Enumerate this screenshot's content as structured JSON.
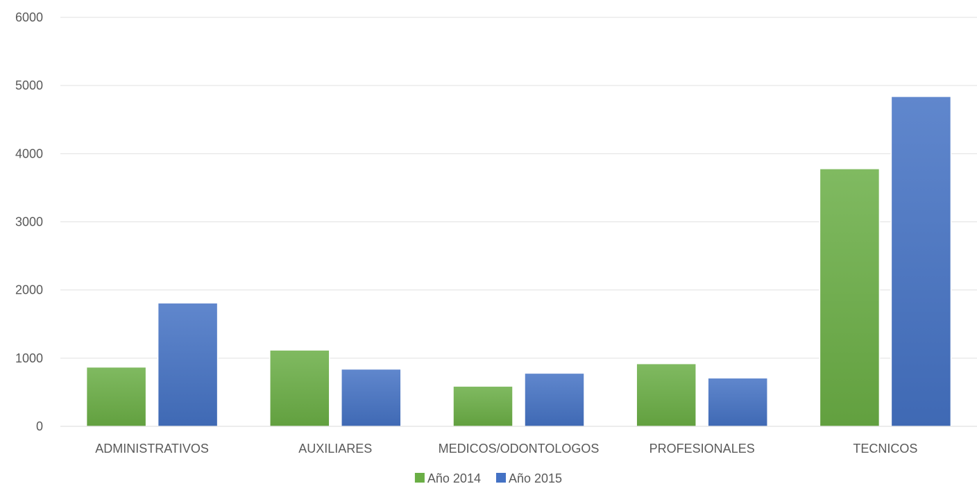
{
  "chart_data": {
    "type": "bar",
    "categories": [
      "ADMINISTRATIVOS",
      "AUXILIARES",
      "MEDICOS/ODONTOLOGOS",
      "PROFESIONALES",
      "TECNICOS"
    ],
    "series": [
      {
        "name": "Año 2014",
        "values": [
          870,
          1120,
          590,
          920,
          3780
        ],
        "color": "#6aae45"
      },
      {
        "name": "Año 2015",
        "values": [
          1810,
          840,
          780,
          710,
          4840
        ],
        "color": "#4472c4"
      }
    ],
    "title": "",
    "xlabel": "",
    "ylabel": "",
    "ylim": [
      0,
      6000
    ],
    "yticks": [
      0,
      1000,
      2000,
      3000,
      4000,
      5000,
      6000
    ],
    "grid": true,
    "legend": "bottom"
  }
}
